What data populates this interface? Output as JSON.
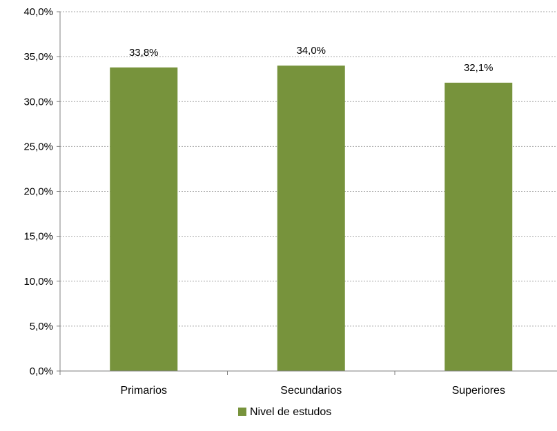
{
  "colors": {
    "bar": "#77933C",
    "grid": "#A6A6A6",
    "axis": "#7F7F7F",
    "background": "#FFFFFF"
  },
  "chart_data": {
    "type": "bar",
    "title": "",
    "xlabel": "",
    "ylabel": "",
    "categories": [
      "Primarios",
      "Secundarios",
      "Superiores"
    ],
    "series": [
      {
        "name": "Nivel de estudos",
        "values": [
          33.8,
          34.0,
          32.1
        ],
        "color": "#77933C"
      }
    ],
    "data_labels": [
      "33,8%",
      "34,0%",
      "32,1%"
    ],
    "ylim": [
      0,
      40
    ],
    "y_ticks": [
      0,
      5,
      10,
      15,
      20,
      25,
      30,
      35,
      40
    ],
    "y_tick_labels": [
      "0,0%",
      "5,0%",
      "10,0%",
      "15,0%",
      "20,0%",
      "25,0%",
      "30,0%",
      "35,0%",
      "40,0%"
    ],
    "grid": true,
    "legend_position": "bottom"
  }
}
